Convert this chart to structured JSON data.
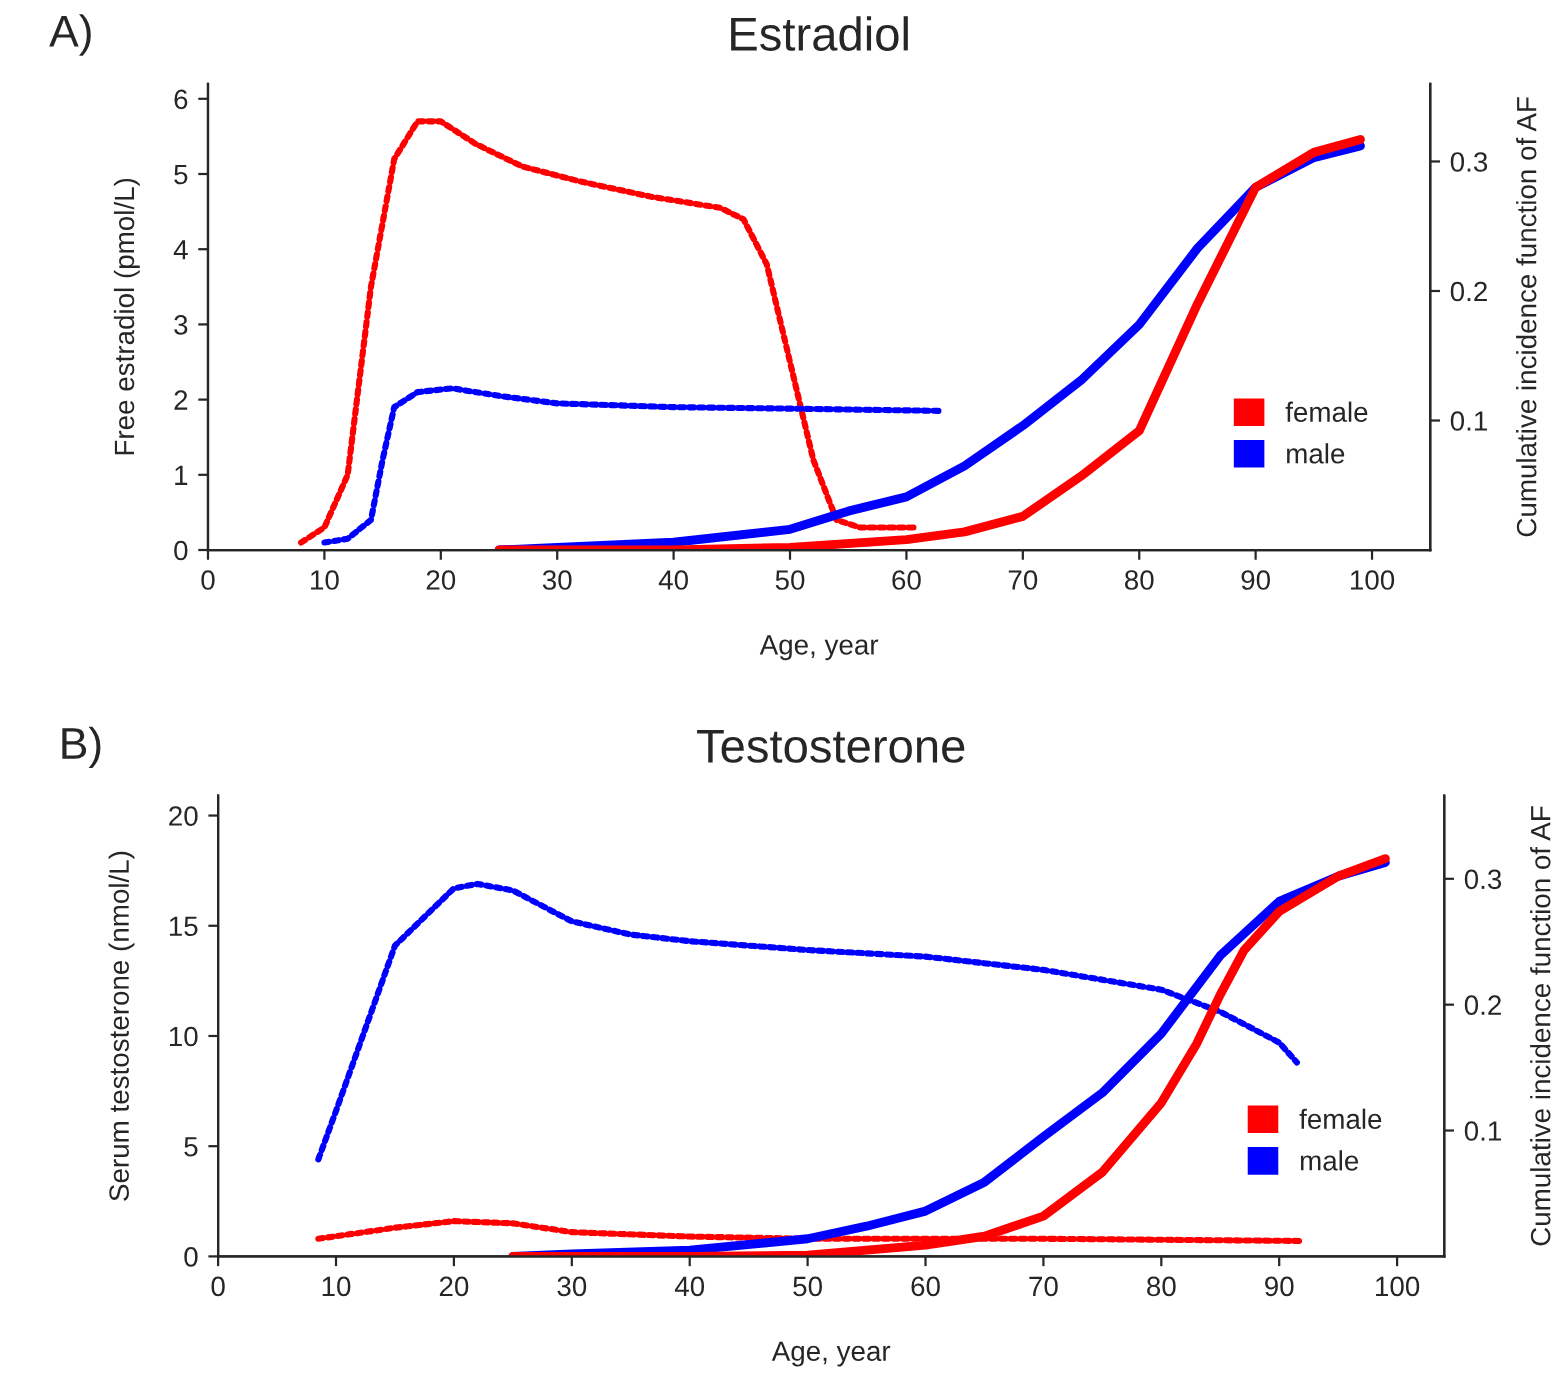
{
  "chart_data": [
    {
      "type": "line",
      "title": "Estradiol",
      "annotations": [
        "A)"
      ],
      "xlabel": "Age, year",
      "ylabel": "Free estradiol (pmol/L)",
      "y2label": "Cumulative incidence function of AF",
      "xlim": [
        0,
        105
      ],
      "xticks": [
        0,
        10,
        20,
        30,
        40,
        50,
        60,
        70,
        80,
        90,
        100
      ],
      "ylim": [
        0,
        6.2
      ],
      "yticks": [
        0,
        1,
        2,
        3,
        4,
        5,
        6
      ],
      "y2lim": [
        0,
        0.36
      ],
      "y2ticks": [
        0.1,
        0.2,
        0.3
      ],
      "grid": false,
      "legend": "lower right",
      "series": [
        {
          "color": "#ff0000",
          "line_style": "dotted",
          "x": [
            8,
            10,
            12,
            14,
            16,
            18,
            20,
            23,
            27,
            32,
            38,
            44,
            46,
            48,
            50,
            52,
            54,
            56,
            61
          ],
          "values": [
            0.1,
            0.3,
            1,
            3.5,
            5.2,
            5.7,
            5.7,
            5.4,
            5.1,
            4.9,
            4.7,
            4.55,
            4.4,
            3.8,
            2.5,
            1.2,
            0.4,
            0.3,
            0.3
          ]
        },
        {
          "color": "#0000ff",
          "line_style": "dotted",
          "x": [
            10,
            12,
            14,
            15,
            16,
            18,
            21,
            25,
            30,
            40,
            50,
            63
          ],
          "values": [
            0.1,
            0.15,
            0.4,
            1.2,
            1.9,
            2.1,
            2.15,
            2.05,
            1.95,
            1.9,
            1.88,
            1.85
          ]
        },
        {
          "name": "male",
          "color": "#0000ff",
          "line_style": "solid",
          "axis": "y2",
          "x": [
            25,
            30,
            40,
            50,
            55,
            60,
            65,
            70,
            75,
            80,
            85,
            90,
            95,
            99
          ],
          "values": [
            0,
            0.002,
            0.006,
            0.016,
            0.03,
            0.041,
            0.065,
            0.096,
            0.131,
            0.174,
            0.233,
            0.28,
            0.303,
            0.312
          ]
        },
        {
          "name": "female",
          "color": "#ff0000",
          "line_style": "solid",
          "axis": "y2",
          "x": [
            25,
            40,
            50,
            60,
            65,
            70,
            75,
            80,
            85,
            90,
            95,
            99
          ],
          "values": [
            0,
            0,
            0.002,
            0.008,
            0.014,
            0.026,
            0.057,
            0.092,
            0.19,
            0.28,
            0.307,
            0.317
          ]
        }
      ]
    },
    {
      "type": "line",
      "title": "Testosterone",
      "annotations": [
        "B)"
      ],
      "xlabel": "Age, year",
      "ylabel": "Serum testosterone (nmol/L)",
      "y2label": "Cumulative incidence function of AF",
      "xlim": [
        0,
        104
      ],
      "xticks": [
        0,
        10,
        20,
        30,
        40,
        50,
        60,
        70,
        80,
        90,
        100
      ],
      "ylim": [
        0,
        20.9
      ],
      "yticks": [
        0,
        5,
        10,
        15,
        20
      ],
      "y2lim": [
        0,
        0.366
      ],
      "y2ticks": [
        0.1,
        0.2,
        0.3
      ],
      "grid": false,
      "legend": "lower right",
      "series": [
        {
          "color": "#0000ff",
          "line_style": "dotted",
          "x": [
            8.5,
            10,
            15,
            20,
            22,
            25,
            30,
            35,
            40,
            50,
            60,
            70,
            80,
            85,
            90,
            91.5
          ],
          "values": [
            4.4,
            6.6,
            14.1,
            16.7,
            16.9,
            16.6,
            15.2,
            14.6,
            14.3,
            13.9,
            13.6,
            13.0,
            12.1,
            11.1,
            9.7,
            8.8
          ]
        },
        {
          "color": "#ff0000",
          "line_style": "dotted",
          "x": [
            8.5,
            15,
            20,
            25,
            30,
            40,
            50,
            60,
            70,
            92
          ],
          "values": [
            0.8,
            1.3,
            1.6,
            1.5,
            1.1,
            0.9,
            0.8,
            0.8,
            0.8,
            0.7
          ]
        },
        {
          "name": "male",
          "color": "#0000ff",
          "line_style": "solid",
          "axis": "y2",
          "x": [
            25,
            30,
            40,
            50,
            55,
            60,
            65,
            70,
            75,
            80,
            85,
            90,
            95,
            99
          ],
          "values": [
            0,
            0.002,
            0.005,
            0.014,
            0.024,
            0.036,
            0.059,
            0.095,
            0.13,
            0.177,
            0.239,
            0.282,
            0.302,
            0.313
          ]
        },
        {
          "name": "female",
          "color": "#ff0000",
          "line_style": "solid",
          "axis": "y2",
          "x": [
            25,
            40,
            50,
            60,
            65,
            70,
            75,
            80,
            83,
            85,
            87,
            90,
            95,
            99
          ],
          "values": [
            0,
            0,
            0.001,
            0.009,
            0.016,
            0.032,
            0.067,
            0.122,
            0.169,
            0.208,
            0.243,
            0.274,
            0.302,
            0.316
          ]
        }
      ]
    }
  ]
}
